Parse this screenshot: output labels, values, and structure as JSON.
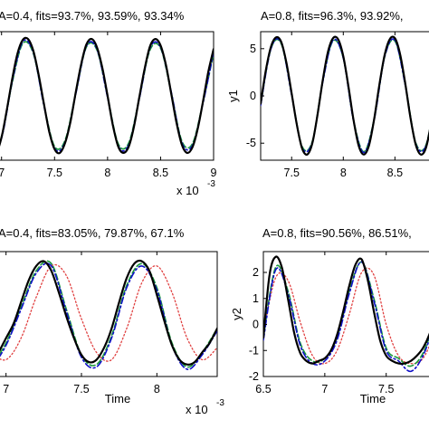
{
  "chart_data": [
    {
      "type": "line",
      "title": "A=0.4, fits=93.7%, 93.59%, 93.34%",
      "xlabel": "",
      "ylabel": "",
      "x_exponent_label": "x 10",
      "x_exponent_power": "-3",
      "xlim": [
        6.9,
        9.0
      ],
      "ylim": [
        -7.0,
        7.0
      ],
      "xticks": [
        7,
        7.5,
        8,
        8.5,
        9
      ],
      "xtick_labels": [
        "7",
        "7.5",
        "8",
        "8.5",
        "9"
      ],
      "yticks": [],
      "ytick_labels": [],
      "grid": false,
      "series": [
        {
          "style": "solid-black",
          "x": [
            6.9,
            6.95,
            7.0,
            7.05,
            7.1,
            7.15,
            7.2,
            7.25,
            7.3,
            7.35,
            7.4,
            7.45,
            7.5,
            7.55,
            7.6,
            7.65,
            7.7,
            7.75,
            7.8,
            7.85,
            7.9,
            7.95,
            8.0,
            8.05,
            8.1,
            8.15,
            8.2,
            8.25,
            8.3,
            8.35,
            8.4,
            8.45,
            8.5,
            8.55,
            8.6,
            8.65,
            8.7,
            8.75,
            8.8,
            8.85,
            8.9,
            8.95,
            9.0
          ],
          "y": [
            -6.2,
            -6.2,
            -4.5,
            -1.5,
            1.8,
            4.6,
            6.1,
            6.2,
            4.9,
            2.3,
            -0.9,
            -3.9,
            -5.8,
            -6.2,
            -5.1,
            -2.8,
            0.4,
            3.4,
            5.6,
            6.2,
            5.3,
            3.1,
            0.0,
            -3.2,
            -5.5,
            -6.2,
            -5.5,
            -3.3,
            -0.1,
            3.0,
            5.4,
            6.2,
            5.5,
            3.4,
            0.3,
            -2.9,
            -5.3,
            -6.2,
            -5.6,
            -3.6,
            -0.6,
            2.6,
            5.1
          ]
        },
        {
          "style": "dash-dot-blue",
          "x": [
            6.9,
            7.0,
            7.1,
            7.2,
            7.3,
            7.4,
            7.5,
            7.6,
            7.7,
            7.8,
            7.9,
            8.0,
            8.1,
            8.2,
            8.3,
            8.4,
            8.5,
            8.6,
            8.7,
            8.8,
            8.9,
            9.0
          ],
          "y": [
            -6.0,
            -4.6,
            1.5,
            5.9,
            4.7,
            -1.1,
            -5.7,
            -5.0,
            0.2,
            5.4,
            5.1,
            -0.2,
            -5.4,
            -5.3,
            -0.3,
            5.2,
            5.3,
            0.5,
            -5.1,
            -5.4,
            -0.8,
            4.8
          ]
        },
        {
          "style": "dashed-green",
          "x": [
            6.9,
            7.0,
            7.1,
            7.2,
            7.3,
            7.4,
            7.5,
            7.6,
            7.7,
            7.8,
            7.9,
            8.0,
            8.1,
            8.2,
            8.3,
            8.4,
            8.5,
            8.6,
            8.7,
            8.8,
            8.9,
            9.0
          ],
          "y": [
            -5.8,
            -4.4,
            1.4,
            5.7,
            4.6,
            -1.0,
            -5.5,
            -4.8,
            0.3,
            5.3,
            5.0,
            -0.1,
            -5.2,
            -5.1,
            -0.2,
            5.0,
            5.2,
            0.4,
            -4.9,
            -5.2,
            -0.7,
            4.6
          ]
        }
      ]
    },
    {
      "type": "line",
      "title": "A=0.8, fits=96.3%, 93.92%,",
      "xlabel": "",
      "ylabel": "y1",
      "xlim": [
        7.2,
        8.9
      ],
      "ylim": [
        -6.8,
        6.8
      ],
      "xticks": [
        7.5,
        8,
        8.5
      ],
      "xtick_labels": [
        "7.5",
        "8",
        "8.5"
      ],
      "yticks": [
        -5,
        0,
        5
      ],
      "ytick_labels": [
        "-5",
        "0",
        "5"
      ],
      "grid": false,
      "series": [
        {
          "style": "solid-black",
          "x": [
            7.2,
            7.25,
            7.3,
            7.35,
            7.4,
            7.45,
            7.5,
            7.55,
            7.6,
            7.65,
            7.7,
            7.75,
            7.8,
            7.85,
            7.9,
            7.95,
            8.0,
            8.05,
            8.1,
            8.15,
            8.2,
            8.25,
            8.3,
            8.35,
            8.4,
            8.45,
            8.5,
            8.55,
            8.6,
            8.65,
            8.7,
            8.75,
            8.8,
            8.85,
            8.9
          ],
          "y": [
            -0.8,
            2.7,
            5.2,
            6.2,
            5.7,
            3.5,
            0.3,
            -3.0,
            -5.5,
            -6.2,
            -5.0,
            -2.0,
            1.6,
            4.6,
            6.1,
            6.0,
            4.2,
            1.0,
            -2.6,
            -5.3,
            -6.2,
            -5.2,
            -2.4,
            1.2,
            4.3,
            6.0,
            6.1,
            4.4,
            1.3,
            -2.3,
            -5.1,
            -6.2,
            -5.5,
            -2.9,
            0.6
          ]
        },
        {
          "style": "dash-dot-blue",
          "x": [
            7.2,
            7.3,
            7.4,
            7.5,
            7.6,
            7.7,
            7.8,
            7.9,
            8.0,
            8.1,
            8.2,
            8.3,
            8.4,
            8.5,
            8.6,
            8.7,
            8.8,
            8.9
          ],
          "y": [
            -1.0,
            5.0,
            5.6,
            0.1,
            -5.4,
            -4.9,
            1.4,
            5.9,
            4.0,
            -2.7,
            -6.0,
            -2.5,
            4.1,
            5.9,
            1.1,
            -5.0,
            -5.3,
            0.4
          ]
        },
        {
          "style": "dashed-green",
          "x": [
            7.2,
            7.3,
            7.4,
            7.5,
            7.6,
            7.7,
            7.8,
            7.9,
            8.0,
            8.1,
            8.2,
            8.3,
            8.4,
            8.5,
            8.6,
            8.7,
            8.8,
            8.9
          ],
          "y": [
            -0.9,
            5.0,
            5.5,
            0.2,
            -5.3,
            -4.8,
            1.5,
            5.8,
            4.0,
            -2.6,
            -5.9,
            -2.4,
            4.1,
            5.8,
            1.2,
            -4.9,
            -5.2,
            0.5
          ]
        }
      ]
    },
    {
      "type": "line",
      "title": "A=0.4, fits=83.05%, 79.87%, 67.1%",
      "xlabel": "Time",
      "ylabel": "",
      "x_exponent_label": "x 10",
      "x_exponent_power": "-3",
      "xlim": [
        6.9,
        8.4
      ],
      "ylim": [
        -2.2,
        3.0
      ],
      "xticks": [
        7,
        7.5,
        8
      ],
      "xtick_labels": [
        "7",
        "7.5",
        "8"
      ],
      "yticks": [],
      "ytick_labels": [],
      "grid": false,
      "series": [
        {
          "style": "solid-black",
          "x": [
            6.9,
            6.95,
            7.0,
            7.05,
            7.1,
            7.15,
            7.2,
            7.25,
            7.3,
            7.35,
            7.4,
            7.45,
            7.5,
            7.55,
            7.6,
            7.65,
            7.7,
            7.75,
            7.8,
            7.85,
            7.9,
            7.95,
            8.0,
            8.05,
            8.1,
            8.15,
            8.2,
            8.25,
            8.3,
            8.35,
            8.4
          ],
          "y": [
            -1.7,
            -1.2,
            -0.6,
            0.0,
            0.9,
            1.8,
            2.4,
            2.6,
            2.2,
            1.3,
            0.3,
            -0.6,
            -1.3,
            -1.6,
            -1.5,
            -1.0,
            -0.2,
            0.9,
            1.9,
            2.5,
            2.6,
            2.2,
            1.2,
            0.1,
            -0.9,
            -1.5,
            -1.7,
            -1.6,
            -1.2,
            -0.8,
            -0.2
          ]
        },
        {
          "style": "dash-dot-blue",
          "x": [
            6.9,
            7.0,
            7.1,
            7.2,
            7.3,
            7.4,
            7.5,
            7.6,
            7.7,
            7.8,
            7.9,
            8.0,
            8.1,
            8.2,
            8.3,
            8.4
          ],
          "y": [
            -1.9,
            -0.9,
            0.6,
            2.1,
            2.4,
            0.5,
            -1.4,
            -1.8,
            -0.6,
            1.5,
            2.4,
            1.4,
            -0.9,
            -1.9,
            -1.3,
            -0.3
          ]
        },
        {
          "style": "dashed-green",
          "x": [
            6.9,
            7.0,
            7.1,
            7.2,
            7.3,
            7.4,
            7.5,
            7.6,
            7.7,
            7.8,
            7.9,
            8.0,
            8.1,
            8.2,
            8.3,
            8.4
          ],
          "y": [
            -1.8,
            -0.8,
            0.7,
            2.2,
            2.5,
            0.6,
            -1.3,
            -1.7,
            -0.5,
            1.6,
            2.5,
            1.5,
            -0.8,
            -1.8,
            -1.2,
            -0.2
          ]
        },
        {
          "style": "dotted-red",
          "x": [
            6.9,
            7.0,
            7.1,
            7.2,
            7.3,
            7.4,
            7.5,
            7.6,
            7.7,
            7.8,
            7.9,
            8.0,
            8.1,
            8.2,
            8.3,
            8.4
          ],
          "y": [
            -1.2,
            -1.5,
            -0.6,
            1.1,
            2.4,
            2.0,
            0.2,
            -1.2,
            -1.5,
            -0.2,
            1.7,
            2.4,
            1.3,
            -0.6,
            -1.5,
            -1.0
          ]
        }
      ]
    },
    {
      "type": "line",
      "title": "A=0.8, fits=90.56%, 86.51%,",
      "xlabel": "Time",
      "ylabel": "y2",
      "xlim": [
        6.5,
        7.9
      ],
      "ylim": [
        -2.0,
        2.8
      ],
      "xticks": [
        6.5,
        7,
        7.5
      ],
      "xtick_labels": [
        "6.5",
        "7",
        "7.5"
      ],
      "yticks": [
        -2,
        -1,
        0,
        1,
        2
      ],
      "ytick_labels": [
        "-2",
        "-1",
        "0",
        "1",
        "2"
      ],
      "grid": false,
      "series": [
        {
          "style": "solid-black",
          "x": [
            6.5,
            6.55,
            6.6,
            6.65,
            6.7,
            6.75,
            6.8,
            6.85,
            6.9,
            6.95,
            7.0,
            7.05,
            7.1,
            7.15,
            7.2,
            7.25,
            7.3,
            7.35,
            7.4,
            7.45,
            7.5,
            7.55,
            7.6,
            7.65,
            7.7,
            7.75,
            7.8,
            7.85,
            7.9
          ],
          "y": [
            -0.5,
            1.9,
            2.6,
            2.2,
            1.0,
            -0.3,
            -1.1,
            -1.4,
            -1.5,
            -1.4,
            -1.3,
            -1.0,
            -0.4,
            0.5,
            1.5,
            2.3,
            2.5,
            1.7,
            0.5,
            -0.6,
            -1.2,
            -1.4,
            -1.5,
            -1.5,
            -1.4,
            -1.2,
            -0.9,
            -0.4,
            0.3
          ]
        },
        {
          "style": "dash-dot-blue",
          "x": [
            6.5,
            6.6,
            6.7,
            6.8,
            6.9,
            7.0,
            7.1,
            7.2,
            7.3,
            7.4,
            7.5,
            7.6,
            7.7,
            7.8,
            7.9
          ],
          "y": [
            -0.6,
            2.1,
            1.2,
            -0.8,
            -1.5,
            -1.4,
            -0.6,
            1.2,
            2.4,
            0.9,
            -1.0,
            -1.4,
            -1.8,
            -1.2,
            0.1
          ]
        },
        {
          "style": "dashed-green",
          "x": [
            6.5,
            6.6,
            6.7,
            6.8,
            6.9,
            7.0,
            7.1,
            7.2,
            7.3,
            7.4,
            7.5,
            7.6,
            7.7,
            7.8,
            7.9
          ],
          "y": [
            -0.5,
            2.2,
            1.3,
            -0.7,
            -1.4,
            -1.3,
            -0.5,
            1.3,
            2.4,
            1.0,
            -0.9,
            -1.3,
            -1.6,
            -1.1,
            0.2
          ]
        },
        {
          "style": "dotted-red",
          "x": [
            6.5,
            6.6,
            6.7,
            6.8,
            6.9,
            7.0,
            7.1,
            7.2,
            7.3,
            7.4,
            7.5,
            7.6,
            7.7,
            7.8,
            7.9
          ],
          "y": [
            -0.3,
            1.8,
            1.7,
            0.1,
            -1.2,
            -1.5,
            -1.0,
            0.4,
            2.0,
            1.9,
            0.0,
            -1.2,
            -1.5,
            -1.3,
            -0.3
          ]
        }
      ]
    }
  ],
  "line_styles": {
    "solid-black": {
      "color": "#000000",
      "dash": "",
      "width": 2.2
    },
    "dash-dot-blue": {
      "color": "#1010c8",
      "dash": "7 3 2 3",
      "width": 1.6
    },
    "dashed-green": {
      "color": "#1a9a3a",
      "dash": "6 3",
      "width": 1.6
    },
    "dotted-red": {
      "color": "#e04040",
      "dash": "1.5 2.5",
      "width": 1.3
    }
  }
}
